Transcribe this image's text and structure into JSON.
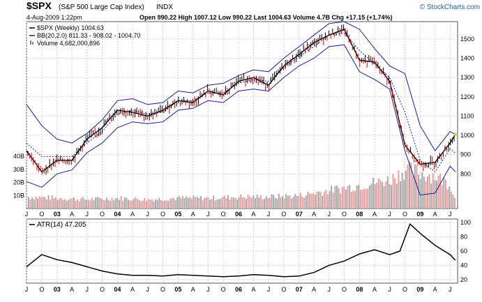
{
  "header": {
    "symbol": "$SPX",
    "name": "(S&P 500 Large Cap Index)",
    "exchange": "INDX",
    "date": "4-Aug-2009 1:22pm",
    "quote": "Open 990.22  High 1007.12  Low 990.22  Last 1004.63  Volume 4.7B  Chg +17.15 (+1.74%)",
    "brand": "© StockCharts.com",
    "brand_color": "#1f5fa8"
  },
  "legend": {
    "price": "$SPX (Weekly) 1004.63",
    "bb": "BB(20,2.0) 811.33 - 908.02 - 1004.70",
    "volume": "Volume 4,682,000,896",
    "atr": "ATR(14) 47.205"
  },
  "colors": {
    "up": "#000000",
    "down": "#cc0000",
    "bands": "#1a1a8c",
    "vol_up": "#a9a9a9",
    "vol_down": "#e4a0a0",
    "grid": "#cfcfcf"
  },
  "chart_data": [
    {
      "type": "line",
      "panel": "price",
      "x_axis_labels": [
        "J",
        "O",
        "03",
        "A",
        "J",
        "O",
        "04",
        "A",
        "J",
        "O",
        "05",
        "A",
        "J",
        "O",
        "06",
        "A",
        "J",
        "O",
        "07",
        "A",
        "J",
        "O",
        "08",
        "A",
        "J",
        "O",
        "09",
        "A",
        "J"
      ],
      "y_ticks": [
        800,
        900,
        1000,
        1100,
        1200,
        1300,
        1400,
        1500
      ],
      "ylim": [
        620,
        1590
      ],
      "x": [
        "2002-07",
        "2002-10",
        "2003-01",
        "2003-04",
        "2003-07",
        "2003-10",
        "2004-01",
        "2004-04",
        "2004-07",
        "2004-10",
        "2005-01",
        "2005-04",
        "2005-07",
        "2005-10",
        "2006-01",
        "2006-04",
        "2006-07",
        "2006-10",
        "2007-01",
        "2007-04",
        "2007-07",
        "2007-10",
        "2008-01",
        "2008-04",
        "2008-07",
        "2008-10",
        "2009-01",
        "2009-04",
        "2009-07",
        "2009-08"
      ],
      "series": [
        {
          "values": [
            920,
            810,
            870,
            870,
            980,
            1040,
            1130,
            1120,
            1100,
            1130,
            1180,
            1170,
            1230,
            1210,
            1280,
            1300,
            1260,
            1360,
            1420,
            1480,
            1520,
            1550,
            1390,
            1380,
            1280,
            950,
            850,
            860,
            960,
            1004.63
          ]
        },
        {
          "values": [
            1160,
            1050,
            980,
            960,
            1010,
            1080,
            1180,
            1190,
            1160,
            1170,
            1230,
            1220,
            1260,
            1270,
            1310,
            1340,
            1330,
            1400,
            1460,
            1520,
            1580,
            1590,
            1550,
            1450,
            1360,
            1320,
            1050,
            920,
            1020,
            1004.7
          ]
        },
        {
          "values": [
            960,
            890,
            890,
            890,
            960,
            1020,
            1110,
            1130,
            1110,
            1120,
            1180,
            1180,
            1220,
            1220,
            1270,
            1290,
            1280,
            1350,
            1410,
            1460,
            1520,
            1530,
            1440,
            1370,
            1300,
            1120,
            870,
            810,
            930,
            908.02
          ]
        },
        {
          "values": [
            760,
            730,
            800,
            820,
            910,
            960,
            1040,
            1070,
            1060,
            1070,
            1130,
            1140,
            1180,
            1170,
            1230,
            1240,
            1230,
            1300,
            1360,
            1400,
            1460,
            1470,
            1330,
            1290,
            1240,
            920,
            690,
            700,
            840,
            811.33
          ]
        }
      ]
    },
    {
      "type": "bar",
      "panel": "volume",
      "y_ticks": [
        "10B",
        "20B",
        "30B",
        "40B"
      ],
      "ylim": [
        0,
        40
      ],
      "x": [
        "2002-07",
        "2003-01",
        "2003-07",
        "2004-01",
        "2004-07",
        "2005-01",
        "2005-07",
        "2006-01",
        "2006-07",
        "2007-01",
        "2007-07",
        "2008-01",
        "2008-07",
        "2008-10",
        "2009-01",
        "2009-04",
        "2009-07",
        "2009-08"
      ],
      "values": [
        9,
        8,
        7,
        8,
        7,
        8,
        8,
        9,
        9,
        10,
        14,
        18,
        22,
        30,
        27,
        25,
        18,
        4.7
      ]
    },
    {
      "type": "line",
      "panel": "atr",
      "x_axis_labels": [
        "J",
        "O",
        "03",
        "A",
        "J",
        "O",
        "04",
        "A",
        "J",
        "O",
        "05",
        "A",
        "J",
        "O",
        "06",
        "A",
        "J",
        "O",
        "07",
        "A",
        "J",
        "O",
        "08",
        "A",
        "J",
        "O",
        "09",
        "A",
        "J"
      ],
      "y_ticks": [
        20,
        40,
        60,
        80,
        100
      ],
      "ylim": [
        15,
        105
      ],
      "x": [
        "2002-07",
        "2002-10",
        "2003-01",
        "2003-04",
        "2003-07",
        "2003-10",
        "2004-01",
        "2004-04",
        "2004-07",
        "2004-10",
        "2005-01",
        "2005-04",
        "2005-07",
        "2005-10",
        "2006-01",
        "2006-04",
        "2006-07",
        "2006-10",
        "2007-01",
        "2007-04",
        "2007-07",
        "2007-10",
        "2008-01",
        "2008-04",
        "2008-07",
        "2008-09",
        "2008-11",
        "2009-01",
        "2009-04",
        "2009-07",
        "2009-08"
      ],
      "series": [
        {
          "name": "ATR(14)",
          "values": [
            38,
            55,
            48,
            44,
            38,
            32,
            28,
            26,
            26,
            25,
            27,
            26,
            25,
            24,
            25,
            27,
            26,
            24,
            25,
            30,
            40,
            46,
            56,
            62,
            55,
            60,
            98,
            85,
            68,
            55,
            47.205
          ]
        }
      ]
    }
  ]
}
